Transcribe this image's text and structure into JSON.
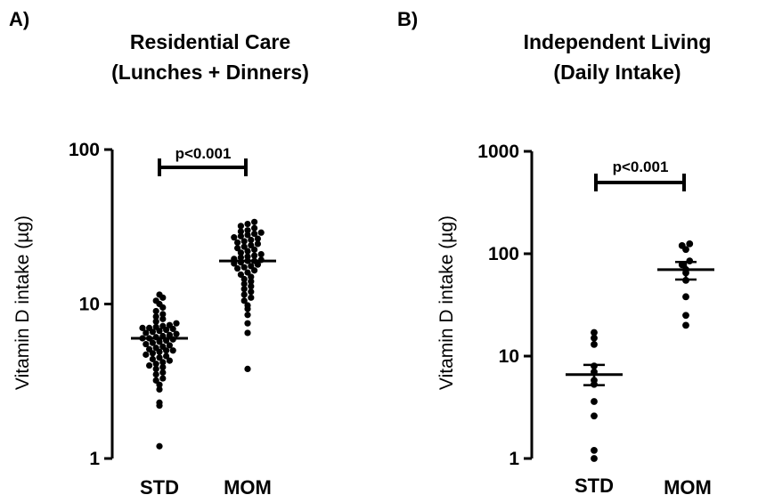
{
  "chart_data": [
    {
      "panel_label": "A)",
      "type": "scatter",
      "title_lines": [
        "Residential Care",
        "(Lunches + Dinners)"
      ],
      "ylabel": "Vitamin D intake (µg)",
      "yscale": "log",
      "ylim": [
        1,
        100
      ],
      "yticks": [
        1,
        10,
        100
      ],
      "ytick_labels": [
        "1",
        "10",
        "100"
      ],
      "categories": [
        "STD",
        "MOM"
      ],
      "series": [
        {
          "name": "STD",
          "center": 6.0,
          "values": [
            1.2,
            2.2,
            2.3,
            2.8,
            3.0,
            3.2,
            3.3,
            3.5,
            3.6,
            3.8,
            3.9,
            4.0,
            4.1,
            4.2,
            4.3,
            4.4,
            4.5,
            4.6,
            4.7,
            4.8,
            4.9,
            5.0,
            5.0,
            5.1,
            5.2,
            5.3,
            5.4,
            5.5,
            5.6,
            5.7,
            5.8,
            5.9,
            6.0,
            6.0,
            6.1,
            6.2,
            6.3,
            6.4,
            6.5,
            6.6,
            6.7,
            6.8,
            6.9,
            7.0,
            7.0,
            7.1,
            7.2,
            7.3,
            7.5,
            7.7,
            8.0,
            8.3,
            8.6,
            9.0,
            9.5,
            10.0,
            10.5,
            11.0,
            11.5
          ]
        },
        {
          "name": "MOM",
          "center": 19.0,
          "values": [
            3.8,
            6.5,
            7.5,
            8.5,
            9.3,
            9.8,
            10.5,
            11.0,
            11.5,
            12.0,
            12.5,
            13.0,
            13.5,
            14.0,
            14.5,
            15.0,
            15.5,
            16.0,
            16.5,
            17.0,
            17.3,
            17.6,
            18.0,
            18.3,
            18.6,
            19.0,
            19.0,
            19.3,
            19.6,
            20.0,
            20.3,
            20.6,
            21.0,
            21.5,
            22.0,
            22.5,
            23.0,
            23.5,
            24.0,
            24.5,
            25.0,
            25.5,
            26.0,
            26.5,
            27.0,
            27.5,
            28.0,
            28.5,
            29.0,
            29.5,
            30.0,
            31.0,
            32.0,
            33.0,
            34.0
          ]
        }
      ],
      "annotation": {
        "text": "p<0.001",
        "between": [
          "STD",
          "MOM"
        ],
        "y_value": 73
      }
    },
    {
      "panel_label": "B)",
      "type": "scatter",
      "title_lines": [
        "Independent Living",
        "(Daily Intake)"
      ],
      "ylabel": "Vitamin D intake (µg)",
      "yscale": "log",
      "ylim": [
        1,
        1000
      ],
      "yticks": [
        1,
        10,
        100,
        1000
      ],
      "ytick_labels": [
        "1",
        "10",
        "100",
        "1000"
      ],
      "categories": [
        "STD",
        "MOM"
      ],
      "series": [
        {
          "name": "STD",
          "center": 6.6,
          "err_low": 5.2,
          "err_high": 8.2,
          "values": [
            1.0,
            1.2,
            2.6,
            3.6,
            5.3,
            5.8,
            7.0,
            8.0,
            13.0,
            15.0,
            17.0
          ]
        },
        {
          "name": "MOM",
          "center": 70,
          "err_low": 56,
          "err_high": 83,
          "values": [
            20,
            25,
            38,
            55,
            65,
            70,
            78,
            85,
            110,
            120,
            125
          ]
        }
      ],
      "annotation": {
        "text": "p<0.001",
        "between": [
          "STD",
          "MOM"
        ],
        "y_value": 480
      }
    }
  ]
}
